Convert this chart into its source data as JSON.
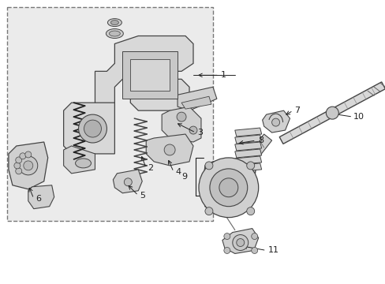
{
  "background_color": "#ffffff",
  "figure_width": 4.89,
  "figure_height": 3.6,
  "dpi": 100,
  "line_color": "#444444",
  "text_color": "#222222",
  "font_size": 8.0,
  "box_bg": "#ebebeb",
  "box_edge": "#888888"
}
